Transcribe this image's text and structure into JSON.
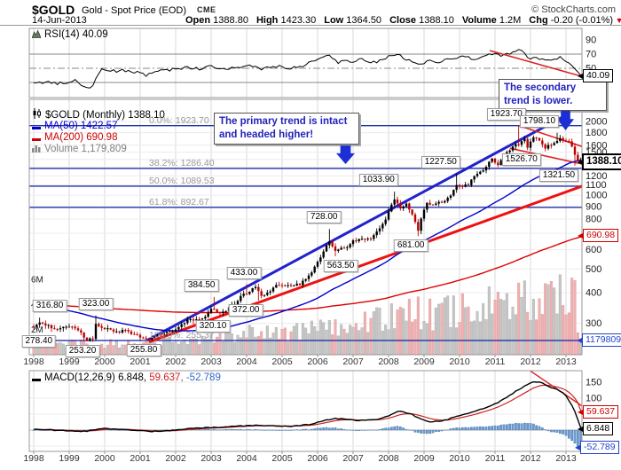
{
  "header": {
    "symbol": "$GOLD",
    "name": "Gold - Spot Price (EOD)",
    "exchange": "CME",
    "credit": "© StockCharts.com",
    "date": "14-Jun-2013",
    "quote": [
      {
        "label": "Open",
        "value": "1388.80"
      },
      {
        "label": "High",
        "value": "1423.30"
      },
      {
        "label": "Low",
        "value": "1364.50"
      },
      {
        "label": "Close",
        "value": "1388.10"
      },
      {
        "label": "Volume",
        "value": "1.2M"
      },
      {
        "label": "Chg",
        "value": "-0.20 (-0.01%)"
      }
    ],
    "chg_direction": "▼"
  },
  "rsi_panel": {
    "legend": "RSI(14) 40.09",
    "value_label": "40.09"
  },
  "main_panel": {
    "legend_symbol": "$GOLD (Monthly) 1388.10",
    "legend_ma50": "MA(50) 1422.57",
    "legend_ma200": "MA(200) 690.98",
    "legend_volume": "Volume 1,179,809",
    "price_value_label": "1388.10",
    "ma200_value_label": "690.98",
    "volume_value_label": "1179809"
  },
  "macd_panel": {
    "legend_name": "MACD(12,26,9) 6.848,",
    "legend_signal": "59.637,",
    "legend_hist": "-52.789",
    "signal_value_label": "59.637",
    "macd_value_label": "6.848",
    "hist_value_label": "-52.789"
  },
  "annotations": {
    "primary": "The primary trend is intact and headed higher!",
    "secondary": "The secondary trend is lower."
  },
  "chart_data": {
    "type": "candlestick",
    "title": "$GOLD Gold - Spot Price (EOD) CME",
    "timeframe": "Monthly",
    "x_range": [
      1998,
      2013.46
    ],
    "x_years": [
      "1998",
      "1999",
      "2000",
      "2001",
      "2002",
      "2003",
      "2004",
      "2005",
      "2006",
      "2007",
      "2008",
      "2009",
      "2010",
      "2011",
      "2012",
      "2013"
    ],
    "price_scale": "log",
    "price_ticks": [
      2000,
      1800,
      1600,
      1500,
      1400,
      1300,
      1200,
      1100,
      1000,
      900,
      800,
      600,
      500,
      400,
      300
    ],
    "rsi_ticks": [
      90,
      70,
      50,
      30,
      10
    ],
    "macd_ticks": [
      150,
      100
    ],
    "volume_ticks": [
      {
        "label": "6M",
        "m": 6
      },
      {
        "label": "4M",
        "m": 4
      },
      {
        "label": "2M",
        "m": 2
      }
    ],
    "last_values": {
      "rsi": 40.09,
      "close": 1388.1,
      "ma50": 1422.57,
      "ma200": 690.98,
      "volume_m": 1.179809,
      "signal": 59.637,
      "macd": 6.848,
      "hist": -52.789
    },
    "ohlc_today": {
      "open": 1388.8,
      "high": 1423.3,
      "low": 1364.5,
      "close": 1388.1
    },
    "fib_levels": [
      {
        "label": "0.0%: 1923.70",
        "value": 1923.7
      },
      {
        "label": "38.2%: 1286.40",
        "value": 1286.4
      },
      {
        "label": "50.0%: 1089.53",
        "value": 1089.53
      },
      {
        "label": "61.8%: 892.67",
        "value": 892.67
      },
      {
        "label": "100.0%: 255.37",
        "value": 255.37
      }
    ],
    "price_callouts": [
      {
        "label": "316.80",
        "year": 1998.25,
        "price": 316.8,
        "side": "high",
        "dx": 8
      },
      {
        "label": "278.40",
        "year": 1998.67,
        "price": 278.4,
        "side": "low",
        "dx": -21
      },
      {
        "label": "253.20",
        "year": 1999.5,
        "price": 253.2,
        "side": "low",
        "dx": -5
      },
      {
        "label": "323.00",
        "year": 1999.75,
        "price": 323.0,
        "side": "high",
        "dx": 0
      },
      {
        "label": "255.80",
        "year": 2001.25,
        "price": 255.8,
        "side": "low",
        "dx": -6
      },
      {
        "label": "384.50",
        "year": 2003.08,
        "price": 384.5,
        "side": "high",
        "dx": -14
      },
      {
        "label": "320.10",
        "year": 2003.25,
        "price": 320.1,
        "side": "low",
        "dx": -8
      },
      {
        "label": "433.00",
        "year": 2004.0,
        "price": 433.0,
        "side": "high",
        "dx": -3
      },
      {
        "label": "372.00",
        "year": 2004.33,
        "price": 372.0,
        "side": "low",
        "dx": -14
      },
      {
        "label": "728.00",
        "year": 2006.33,
        "price": 728.0,
        "side": "high",
        "dx": -6
      },
      {
        "label": "563.50",
        "year": 2006.5,
        "price": 563.5,
        "side": "low",
        "dx": 6
      },
      {
        "label": "1033.90",
        "year": 2008.17,
        "price": 1033.9,
        "side": "high",
        "dx": -18
      },
      {
        "label": "681.00",
        "year": 2008.83,
        "price": 681.0,
        "side": "low",
        "dx": -8
      },
      {
        "label": "1227.50",
        "year": 2009.92,
        "price": 1227.5,
        "side": "high",
        "dx": -18
      },
      {
        "label": "1923.70",
        "year": 2011.67,
        "price": 1923.7,
        "side": "high",
        "dx": -14
      },
      {
        "label": "1526.70",
        "year": 2011.92,
        "price": 1526.7,
        "side": "low",
        "dx": -7
      },
      {
        "label": "1798.10",
        "year": 2012.75,
        "price": 1798.1,
        "side": "high",
        "dx": -20
      },
      {
        "label": "1321.50",
        "year": 2013.25,
        "price": 1321.5,
        "side": "low",
        "dx": -18
      }
    ],
    "close_anchors": [
      [
        1998.0,
        289
      ],
      [
        1998.17,
        301
      ],
      [
        1998.42,
        293
      ],
      [
        1998.67,
        282
      ],
      [
        1998.92,
        292
      ],
      [
        1999.17,
        287
      ],
      [
        1999.42,
        265
      ],
      [
        1999.5,
        256
      ],
      [
        1999.67,
        262
      ],
      [
        1999.75,
        300
      ],
      [
        1999.92,
        288
      ],
      [
        2000.08,
        284
      ],
      [
        2000.33,
        276
      ],
      [
        2000.58,
        281
      ],
      [
        2000.83,
        269
      ],
      [
        2001.08,
        262
      ],
      [
        2001.25,
        258
      ],
      [
        2001.42,
        267
      ],
      [
        2001.58,
        272
      ],
      [
        2001.83,
        277
      ],
      [
        2002.08,
        289
      ],
      [
        2002.33,
        311
      ],
      [
        2002.58,
        309
      ],
      [
        2002.83,
        318
      ],
      [
        2003.0,
        345
      ],
      [
        2003.17,
        336
      ],
      [
        2003.29,
        328
      ],
      [
        2003.5,
        347
      ],
      [
        2003.67,
        363
      ],
      [
        2003.92,
        398
      ],
      [
        2004.08,
        402
      ],
      [
        2004.25,
        425
      ],
      [
        2004.42,
        388
      ],
      [
        2004.58,
        398
      ],
      [
        2004.83,
        432
      ],
      [
        2005.0,
        426
      ],
      [
        2005.25,
        429
      ],
      [
        2005.5,
        432
      ],
      [
        2005.75,
        466
      ],
      [
        2005.92,
        513
      ],
      [
        2006.08,
        560
      ],
      [
        2006.33,
        650
      ],
      [
        2006.5,
        590
      ],
      [
        2006.67,
        615
      ],
      [
        2006.83,
        612
      ],
      [
        2007.0,
        648
      ],
      [
        2007.25,
        670
      ],
      [
        2007.5,
        662
      ],
      [
        2007.75,
        738
      ],
      [
        2007.92,
        800
      ],
      [
        2008.08,
        915
      ],
      [
        2008.17,
        968
      ],
      [
        2008.33,
        890
      ],
      [
        2008.5,
        920
      ],
      [
        2008.67,
        838
      ],
      [
        2008.83,
        720
      ],
      [
        2008.92,
        810
      ],
      [
        2009.08,
        935
      ],
      [
        2009.25,
        918
      ],
      [
        2009.42,
        935
      ],
      [
        2009.58,
        950
      ],
      [
        2009.75,
        1000
      ],
      [
        2009.92,
        1095
      ],
      [
        2010.08,
        1080
      ],
      [
        2010.25,
        1110
      ],
      [
        2010.42,
        1210
      ],
      [
        2010.58,
        1240
      ],
      [
        2010.75,
        1310
      ],
      [
        2010.92,
        1415
      ],
      [
        2011.08,
        1330
      ],
      [
        2011.25,
        1440
      ],
      [
        2011.42,
        1530
      ],
      [
        2011.58,
        1625
      ],
      [
        2011.67,
        1620
      ],
      [
        2011.83,
        1720
      ],
      [
        2011.92,
        1565
      ],
      [
        2012.08,
        1735
      ],
      [
        2012.25,
        1675
      ],
      [
        2012.42,
        1565
      ],
      [
        2012.58,
        1615
      ],
      [
        2012.67,
        1650
      ],
      [
        2012.83,
        1715
      ],
      [
        2012.92,
        1660
      ],
      [
        2013.08,
        1665
      ],
      [
        2013.17,
        1590
      ],
      [
        2013.25,
        1475
      ],
      [
        2013.33,
        1395
      ],
      [
        2013.42,
        1388.1
      ]
    ],
    "pre_history_anchors": [
      [
        1990,
        383
      ],
      [
        1991,
        362
      ],
      [
        1992,
        344
      ],
      [
        1993,
        360
      ],
      [
        1994,
        384
      ],
      [
        1995,
        385
      ],
      [
        1996,
        388
      ],
      [
        1997,
        331
      ],
      [
        1997.92,
        292
      ]
    ],
    "extremes": [
      {
        "x": 1998.17,
        "high": 316.8
      },
      {
        "x": 1998.67,
        "low": 278.4
      },
      {
        "x": 1999.5,
        "low": 253.2
      },
      {
        "x": 1999.75,
        "high": 323.0
      },
      {
        "x": 2001.25,
        "low": 255.8
      },
      {
        "x": 2003.08,
        "high": 384.5
      },
      {
        "x": 2003.25,
        "low": 320.1
      },
      {
        "x": 2004.0,
        "high": 433.0
      },
      {
        "x": 2004.33,
        "low": 372.0
      },
      {
        "x": 2006.33,
        "high": 728.0
      },
      {
        "x": 2006.5,
        "low": 563.5
      },
      {
        "x": 2008.17,
        "high": 1033.9
      },
      {
        "x": 2008.83,
        "low": 681.0
      },
      {
        "x": 2009.92,
        "high": 1227.5
      },
      {
        "x": 2011.67,
        "high": 1923.7
      },
      {
        "x": 2011.92,
        "low": 1526.7
      },
      {
        "x": 2012.75,
        "high": 1798.1
      },
      {
        "x": 2013.25,
        "low": 1321.5
      },
      {
        "x": 2013.42,
        "high": 1423.3,
        "low": 1364.5
      }
    ],
    "rsi_anchors": [
      [
        1998.0,
        28
      ],
      [
        1998.4,
        32
      ],
      [
        1998.7,
        28
      ],
      [
        1999.0,
        31
      ],
      [
        1999.2,
        33
      ],
      [
        1999.45,
        24
      ],
      [
        1999.6,
        22
      ],
      [
        1999.75,
        35
      ],
      [
        1999.9,
        48
      ],
      [
        2000.2,
        46
      ],
      [
        2000.6,
        47
      ],
      [
        2000.9,
        44
      ],
      [
        2001.2,
        40
      ],
      [
        2001.5,
        45
      ],
      [
        2001.9,
        48
      ],
      [
        2002.3,
        52
      ],
      [
        2002.7,
        49
      ],
      [
        2003.0,
        54
      ],
      [
        2003.3,
        48
      ],
      [
        2003.7,
        52
      ],
      [
        2004.1,
        55
      ],
      [
        2004.4,
        48
      ],
      [
        2004.8,
        53
      ],
      [
        2005.2,
        50
      ],
      [
        2005.6,
        54
      ],
      [
        2005.95,
        60
      ],
      [
        2006.3,
        69
      ],
      [
        2006.6,
        58
      ],
      [
        2006.9,
        60
      ],
      [
        2007.3,
        62
      ],
      [
        2007.6,
        58
      ],
      [
        2007.9,
        65
      ],
      [
        2008.2,
        70
      ],
      [
        2008.5,
        63
      ],
      [
        2008.8,
        55
      ],
      [
        2009.1,
        60
      ],
      [
        2009.4,
        58
      ],
      [
        2009.8,
        65
      ],
      [
        2010.1,
        67
      ],
      [
        2010.4,
        62
      ],
      [
        2010.7,
        66
      ],
      [
        2010.95,
        71
      ],
      [
        2011.2,
        68
      ],
      [
        2011.5,
        73
      ],
      [
        2011.7,
        77
      ],
      [
        2011.95,
        63
      ],
      [
        2012.1,
        68
      ],
      [
        2012.35,
        61
      ],
      [
        2012.6,
        63
      ],
      [
        2012.85,
        66
      ],
      [
        2013.05,
        58
      ],
      [
        2013.25,
        48
      ],
      [
        2013.42,
        40.09
      ]
    ],
    "macd_anchors": [
      [
        1998.0,
        2
      ],
      [
        1998.5,
        0
      ],
      [
        1999.0,
        -3
      ],
      [
        1999.5,
        -4
      ],
      [
        1999.9,
        5
      ],
      [
        2000.3,
        3
      ],
      [
        2000.8,
        -1
      ],
      [
        2001.3,
        -4
      ],
      [
        2001.8,
        -2
      ],
      [
        2002.3,
        4
      ],
      [
        2002.8,
        7
      ],
      [
        2003.3,
        9
      ],
      [
        2003.8,
        13
      ],
      [
        2004.3,
        15
      ],
      [
        2004.8,
        13
      ],
      [
        2005.3,
        12
      ],
      [
        2005.8,
        18
      ],
      [
        2006.2,
        30
      ],
      [
        2006.5,
        37
      ],
      [
        2006.9,
        32
      ],
      [
        2007.3,
        30
      ],
      [
        2007.7,
        34
      ],
      [
        2008.0,
        45
      ],
      [
        2008.3,
        60
      ],
      [
        2008.6,
        52
      ],
      [
        2008.9,
        35
      ],
      [
        2009.2,
        26
      ],
      [
        2009.5,
        28
      ],
      [
        2009.9,
        42
      ],
      [
        2010.3,
        55
      ],
      [
        2010.7,
        68
      ],
      [
        2011.0,
        82
      ],
      [
        2011.3,
        100
      ],
      [
        2011.6,
        122
      ],
      [
        2011.9,
        142
      ],
      [
        2012.1,
        152
      ],
      [
        2012.3,
        148
      ],
      [
        2012.5,
        138
      ],
      [
        2012.7,
        128
      ],
      [
        2012.9,
        120
      ],
      [
        2013.0,
        106
      ],
      [
        2013.1,
        88
      ],
      [
        2013.2,
        70
      ],
      [
        2013.3,
        45
      ],
      [
        2013.42,
        6.848
      ]
    ],
    "volume_anchors": [
      [
        1998,
        0.8
      ],
      [
        1999,
        0.9
      ],
      [
        2000,
        0.85
      ],
      [
        2001,
        0.95
      ],
      [
        2002,
        1.05
      ],
      [
        2003,
        1.3
      ],
      [
        2004,
        1.7
      ],
      [
        2005,
        1.6
      ],
      [
        2006,
        2.2
      ],
      [
        2007,
        2.3
      ],
      [
        2008,
        3.3
      ],
      [
        2009,
        3.1
      ],
      [
        2010,
        3.5
      ],
      [
        2011,
        4.2
      ],
      [
        2012,
        4.4
      ],
      [
        2013,
        5.0
      ],
      [
        2013.42,
        1.179809
      ]
    ],
    "volume_spikes": [
      {
        "x": 2011.7,
        "m": 5.7
      },
      {
        "x": 2013.17,
        "m": 6.1
      },
      {
        "x": 2013.25,
        "m": 5.9
      },
      {
        "x": 2008.83,
        "m": 4.6
      }
    ],
    "trendlines": {
      "main_primary_blue": {
        "x1": 2001.2,
        "p1": 256,
        "x2": 2012.92,
        "p2": 2090
      },
      "main_support_red": {
        "x1": 2001.25,
        "p1": 252,
        "x2": 2013.46,
        "p2": 1090
      },
      "wedge_upper_red": {
        "x1": 2011.67,
        "p1": 1923.7,
        "x2": 2013.46,
        "p2": 1580
      },
      "wedge_lower_red": {
        "x1": 2011.42,
        "p1": 1555,
        "x2": 2013.46,
        "p2": 1340
      },
      "rsi_red": {
        "x1": 2010.85,
        "v1": 75,
        "x2": 2013.45,
        "v2": 38.5
      },
      "macd_red": {
        "x1": 2012.0,
        "v1": 185,
        "x2": 2013.46,
        "v2": 75
      }
    },
    "colors": {
      "up": "#000000",
      "down": "#bb0000",
      "ma50": "#0000cc",
      "ma200": "#dd0000",
      "trend_blue": "#2222cc",
      "fib": "#2233aa",
      "volume_up": "#c6c6c6",
      "volume_down": "#eeb0b0",
      "hist": "#6b99cc",
      "hist_edge": "#3a6ea8",
      "signal": "#cc2222",
      "macd_line": "#000000",
      "annotation": "#2222bb",
      "arrow": "#1c2fd4",
      "grid": "#d9d9d9",
      "panel_border": "#999999"
    },
    "legend_position": "top-left",
    "grid": true
  }
}
